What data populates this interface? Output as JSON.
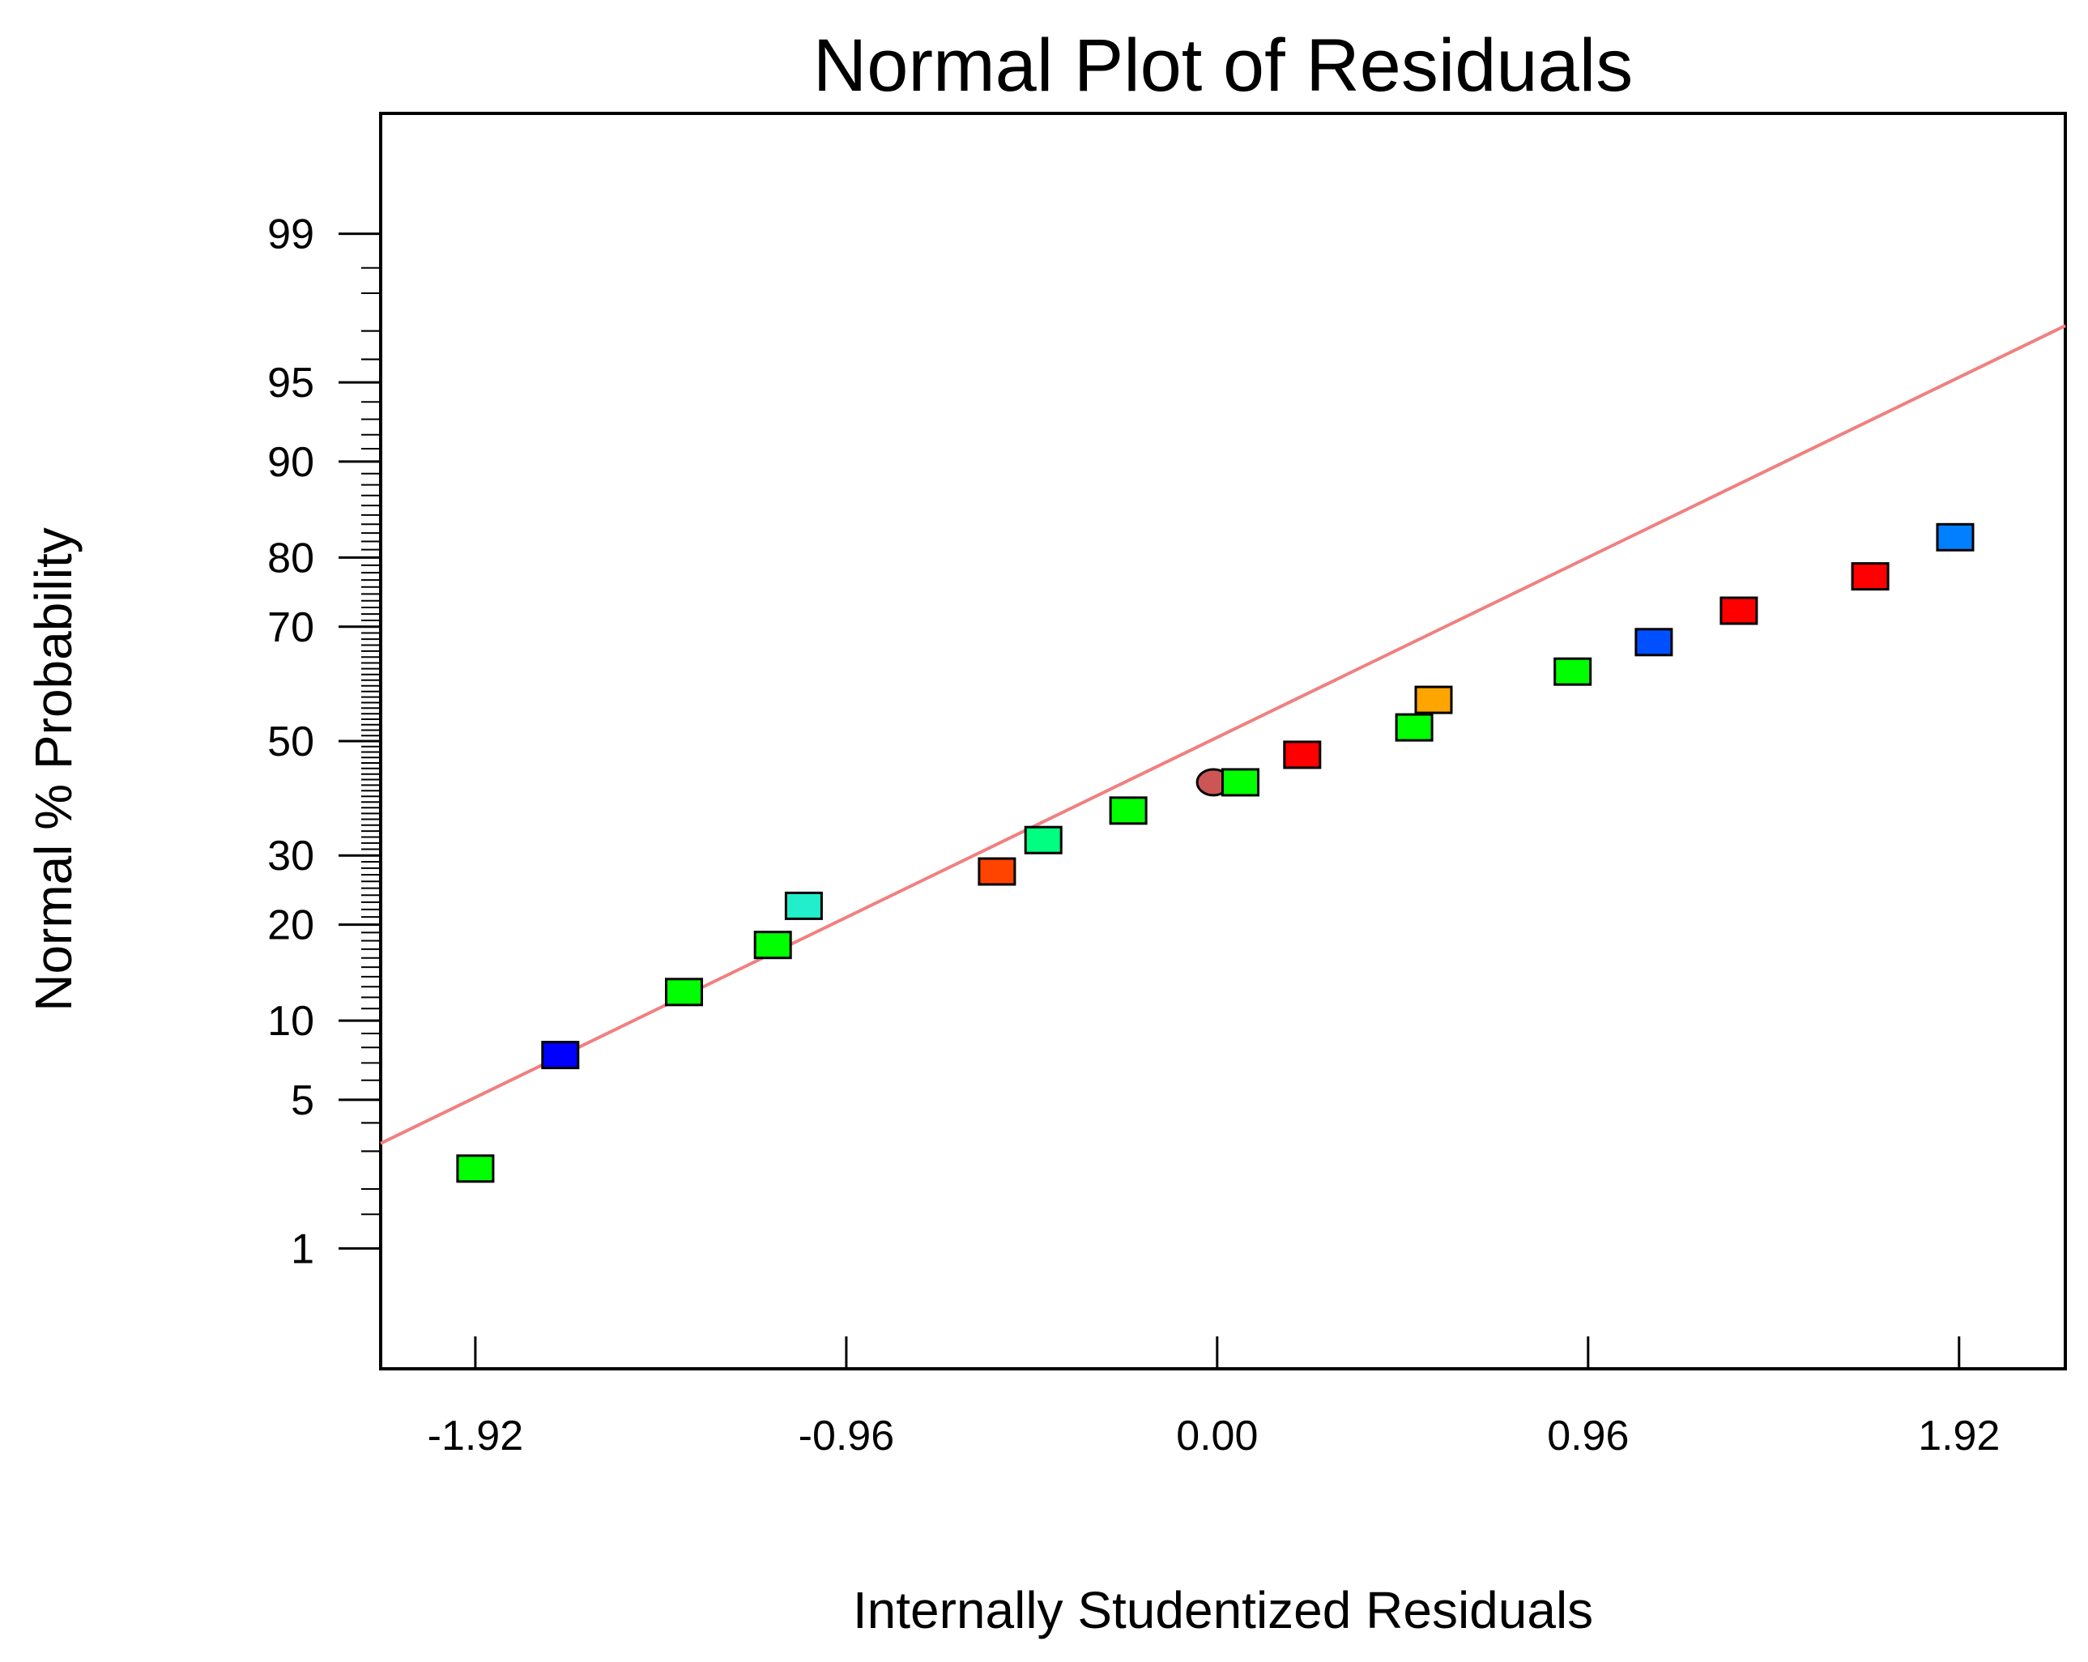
{
  "chart_data": {
    "type": "scatter",
    "title": "Normal Plot of Residuals",
    "xlabel": "Internally Studentized Residuals",
    "ylabel": "Normal % Probability",
    "xlim": [
      -2.165,
      2.195
    ],
    "x_ticks": [
      -1.92,
      -0.96,
      0.0,
      0.96,
      1.92
    ],
    "x_tick_labels": [
      "-1.92",
      "-0.96",
      "0.00",
      "0.96",
      "1.92"
    ],
    "y_scale": "normal-probability",
    "ylim_percent": [
      0.2,
      99.8
    ],
    "y_ticks": [
      1,
      5,
      10,
      20,
      30,
      50,
      70,
      80,
      90,
      95,
      99
    ],
    "y_tick_labels": [
      "1",
      "5",
      "10",
      "20",
      "30",
      "50",
      "70",
      "80",
      "90",
      "95",
      "99"
    ],
    "grid": false,
    "fit_line": {
      "color": "#f08080",
      "x_at_50_percent": -0.02,
      "slope_z_per_x": 0.86
    },
    "points": [
      {
        "x": -1.92,
        "y": 2.5,
        "color": "#00ff00",
        "shape": "square"
      },
      {
        "x": -1.7,
        "y": 7.5,
        "color": "#0000ff",
        "shape": "square"
      },
      {
        "x": -1.38,
        "y": 12.5,
        "color": "#00ff00",
        "shape": "square"
      },
      {
        "x": -1.15,
        "y": 17.5,
        "color": "#00ff00",
        "shape": "square"
      },
      {
        "x": -1.07,
        "y": 22.5,
        "color": "#22eecc",
        "shape": "square"
      },
      {
        "x": -0.57,
        "y": 27.5,
        "color": "#ff4400",
        "shape": "square"
      },
      {
        "x": -0.45,
        "y": 32.5,
        "color": "#00ff80",
        "shape": "square"
      },
      {
        "x": -0.23,
        "y": 37.5,
        "color": "#00ff00",
        "shape": "square"
      },
      {
        "x": -0.01,
        "y": 42.5,
        "color": "#cc5555",
        "shape": "circle"
      },
      {
        "x": 0.06,
        "y": 42.5,
        "color": "#00ff00",
        "shape": "square"
      },
      {
        "x": 0.22,
        "y": 47.5,
        "color": "#ff0000",
        "shape": "square"
      },
      {
        "x": 0.51,
        "y": 52.5,
        "color": "#00ff00",
        "shape": "square"
      },
      {
        "x": 0.56,
        "y": 57.5,
        "color": "#ffa500",
        "shape": "square"
      },
      {
        "x": 0.92,
        "y": 62.5,
        "color": "#00ff00",
        "shape": "square"
      },
      {
        "x": 1.13,
        "y": 67.5,
        "color": "#0050ff",
        "shape": "square"
      },
      {
        "x": 1.35,
        "y": 72.5,
        "color": "#ff0000",
        "shape": "square"
      },
      {
        "x": 1.69,
        "y": 77.5,
        "color": "#ff0000",
        "shape": "square"
      },
      {
        "x": 1.91,
        "y": 82.5,
        "color": "#0080ff",
        "shape": "square"
      }
    ]
  }
}
